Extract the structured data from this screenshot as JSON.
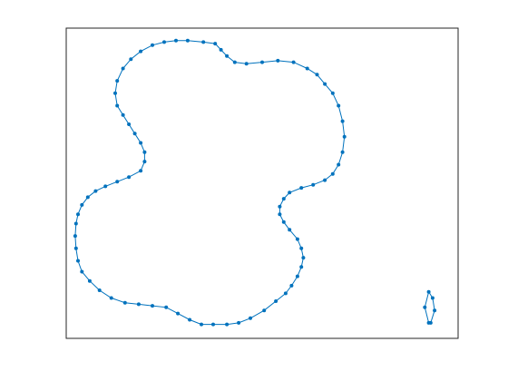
{
  "chart_data": {
    "type": "scatter",
    "title": "",
    "xlabel": "",
    "ylabel": "",
    "xlim": [
      0,
      1
    ],
    "ylim": [
      0,
      1
    ],
    "axes_ticks": false,
    "grid": false,
    "legend": "none",
    "series": [
      {
        "color": "#0072BD",
        "closed": true,
        "points": [
          [
            0.31,
            0.96
          ],
          [
            0.35,
            0.955
          ],
          [
            0.38,
            0.95
          ],
          [
            0.395,
            0.93
          ],
          [
            0.41,
            0.91
          ],
          [
            0.43,
            0.89
          ],
          [
            0.46,
            0.885
          ],
          [
            0.5,
            0.89
          ],
          [
            0.54,
            0.895
          ],
          [
            0.58,
            0.89
          ],
          [
            0.615,
            0.87
          ],
          [
            0.64,
            0.85
          ],
          [
            0.66,
            0.82
          ],
          [
            0.68,
            0.79
          ],
          [
            0.695,
            0.75
          ],
          [
            0.705,
            0.7
          ],
          [
            0.71,
            0.65
          ],
          [
            0.705,
            0.6
          ],
          [
            0.695,
            0.56
          ],
          [
            0.68,
            0.53
          ],
          [
            0.66,
            0.51
          ],
          [
            0.63,
            0.495
          ],
          [
            0.6,
            0.485
          ],
          [
            0.57,
            0.47
          ],
          [
            0.555,
            0.45
          ],
          [
            0.545,
            0.425
          ],
          [
            0.545,
            0.4
          ],
          [
            0.555,
            0.375
          ],
          [
            0.57,
            0.35
          ],
          [
            0.59,
            0.32
          ],
          [
            0.6,
            0.29
          ],
          [
            0.605,
            0.26
          ],
          [
            0.6,
            0.23
          ],
          [
            0.59,
            0.2
          ],
          [
            0.575,
            0.17
          ],
          [
            0.56,
            0.145
          ],
          [
            0.535,
            0.12
          ],
          [
            0.505,
            0.09
          ],
          [
            0.47,
            0.065
          ],
          [
            0.44,
            0.05
          ],
          [
            0.41,
            0.045
          ],
          [
            0.375,
            0.045
          ],
          [
            0.345,
            0.045
          ],
          [
            0.315,
            0.06
          ],
          [
            0.285,
            0.08
          ],
          [
            0.255,
            0.1
          ],
          [
            0.22,
            0.105
          ],
          [
            0.185,
            0.11
          ],
          [
            0.15,
            0.115
          ],
          [
            0.115,
            0.13
          ],
          [
            0.085,
            0.155
          ],
          [
            0.06,
            0.185
          ],
          [
            0.04,
            0.215
          ],
          [
            0.03,
            0.25
          ],
          [
            0.025,
            0.29
          ],
          [
            0.023,
            0.33
          ],
          [
            0.025,
            0.37
          ],
          [
            0.03,
            0.4
          ],
          [
            0.04,
            0.43
          ],
          [
            0.055,
            0.455
          ],
          [
            0.075,
            0.475
          ],
          [
            0.1,
            0.49
          ],
          [
            0.13,
            0.505
          ],
          [
            0.16,
            0.52
          ],
          [
            0.19,
            0.54
          ],
          [
            0.2,
            0.57
          ],
          [
            0.2,
            0.6
          ],
          [
            0.19,
            0.63
          ],
          [
            0.175,
            0.66
          ],
          [
            0.16,
            0.69
          ],
          [
            0.145,
            0.72
          ],
          [
            0.13,
            0.75
          ],
          [
            0.125,
            0.79
          ],
          [
            0.13,
            0.83
          ],
          [
            0.145,
            0.87
          ],
          [
            0.165,
            0.9
          ],
          [
            0.19,
            0.925
          ],
          [
            0.22,
            0.945
          ],
          [
            0.25,
            0.955
          ],
          [
            0.28,
            0.96
          ]
        ]
      },
      {
        "color": "#0072BD",
        "closed": true,
        "points": [
          [
            0.925,
            0.15
          ],
          [
            0.935,
            0.13
          ],
          [
            0.94,
            0.09
          ],
          [
            0.93,
            0.05
          ],
          [
            0.925,
            0.05
          ],
          [
            0.915,
            0.1
          ]
        ]
      }
    ]
  }
}
